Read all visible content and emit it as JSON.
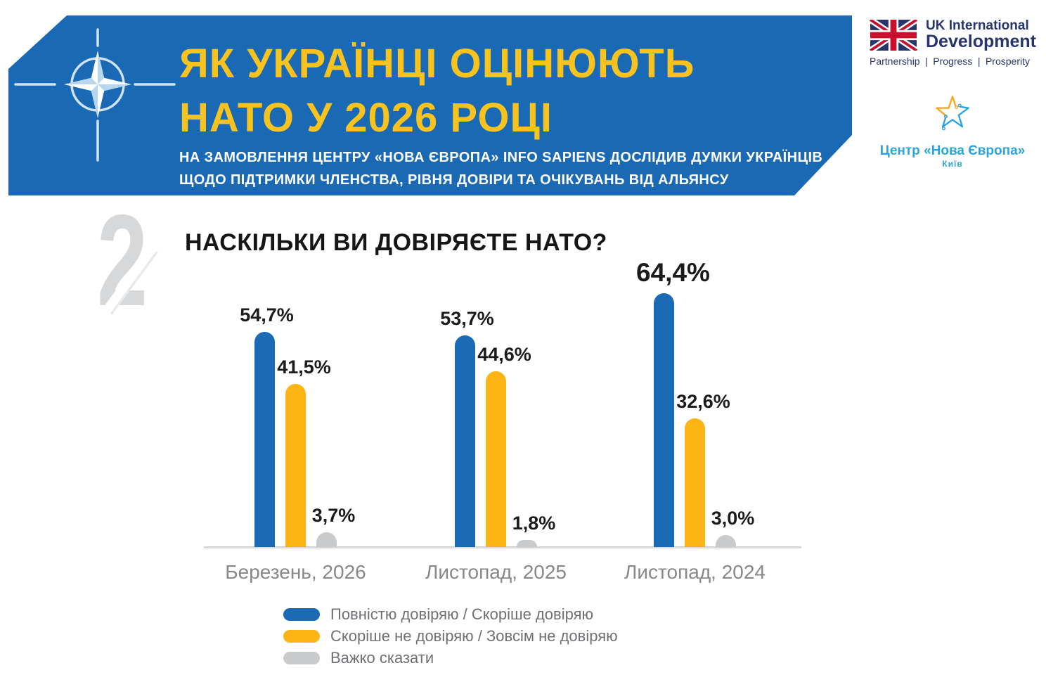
{
  "header": {
    "title_line1": "ЯК УКРАЇНЦІ ОЦІНЮЮТЬ",
    "title_line2": "НАТО У 2026 РОЦІ",
    "subtitle_line1": "НА ЗАМОВЛЕННЯ ЦЕНТРУ «НОВА ЄВРОПА» INFO SAPIENS ДОСЛІДИВ ДУМКИ УКРАЇНЦІВ",
    "subtitle_line2": "ЩОДО ПІДТРИМКИ ЧЛЕНСТВА, РІВНЯ ДОВІРИ ТА ОЧІКУВАНЬ ВІД АЛЬЯНСУ",
    "banner_color": "#1a69b4",
    "title_color": "#f8c31e"
  },
  "logos": {
    "uk": {
      "line1": "UK International",
      "line2": "Development",
      "tagline": [
        "Partnership",
        "Progress",
        "Prosperity"
      ],
      "divider": "|",
      "text_color": "#27356b"
    },
    "nova_europa": {
      "name": "Центр «Нова Європа»",
      "city": "Київ",
      "text_color": "#2aa5dc",
      "star_yellow": "#f6a81c",
      "star_blue": "#29a3e0"
    }
  },
  "section": {
    "number": "2",
    "question": "НАСКІЛЬКИ ВИ ДОВІРЯЄТЕ НАТО?"
  },
  "chart_data": {
    "type": "bar",
    "title": "НАСКІЛЬКИ ВИ ДОВІРЯЄТЕ НАТО?",
    "categories": [
      "Березень, 2026",
      "Листопад, 2025",
      "Листопад, 2024"
    ],
    "series": [
      {
        "name": "Повністю довіряю / Скоріше довіряю",
        "color": "#1a6ab6",
        "values": [
          54.7,
          53.7,
          64.4
        ],
        "labels": [
          "54,7%",
          "53,7%",
          "64,4%"
        ]
      },
      {
        "name": "Скоріше не довіряю / Зовсім не довіряю",
        "color": "#fcb515",
        "values": [
          41.5,
          44.6,
          32.6
        ],
        "labels": [
          "41,5%",
          "44,6%",
          "32,6%"
        ]
      },
      {
        "name": "Важко сказати",
        "color": "#c9cacb",
        "values": [
          3.7,
          1.8,
          3.0
        ],
        "labels": [
          "3,7%",
          "1,8%",
          "3,0%"
        ]
      }
    ],
    "emphasized_label": {
      "category_index": 2,
      "series_index": 0
    },
    "ylim": [
      0,
      70
    ],
    "grid": false,
    "legend_position": "bottom",
    "xlabel": "",
    "ylabel": ""
  }
}
